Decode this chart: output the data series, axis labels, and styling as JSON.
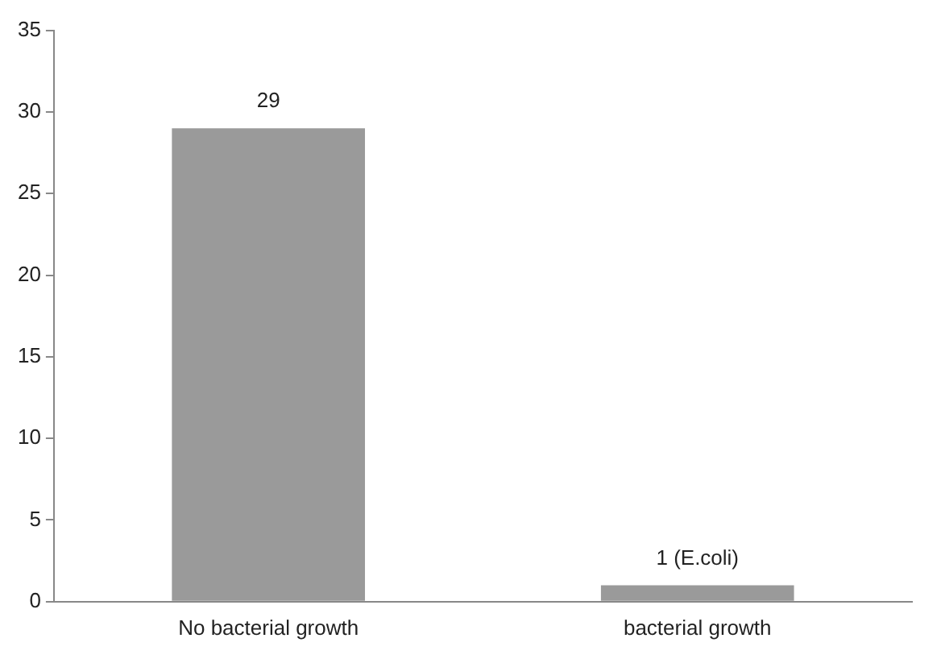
{
  "chart_data": {
    "type": "bar",
    "categories": [
      "No bacterial growth",
      "bacterial growth"
    ],
    "values": [
      29,
      1
    ],
    "value_labels": [
      "29",
      "1 (E.coli)"
    ],
    "color": "#9a9a9a",
    "ylim": [
      0,
      35
    ],
    "yticks": [
      0,
      5,
      10,
      15,
      20,
      25,
      30,
      35
    ],
    "grid": false,
    "legend": false
  }
}
